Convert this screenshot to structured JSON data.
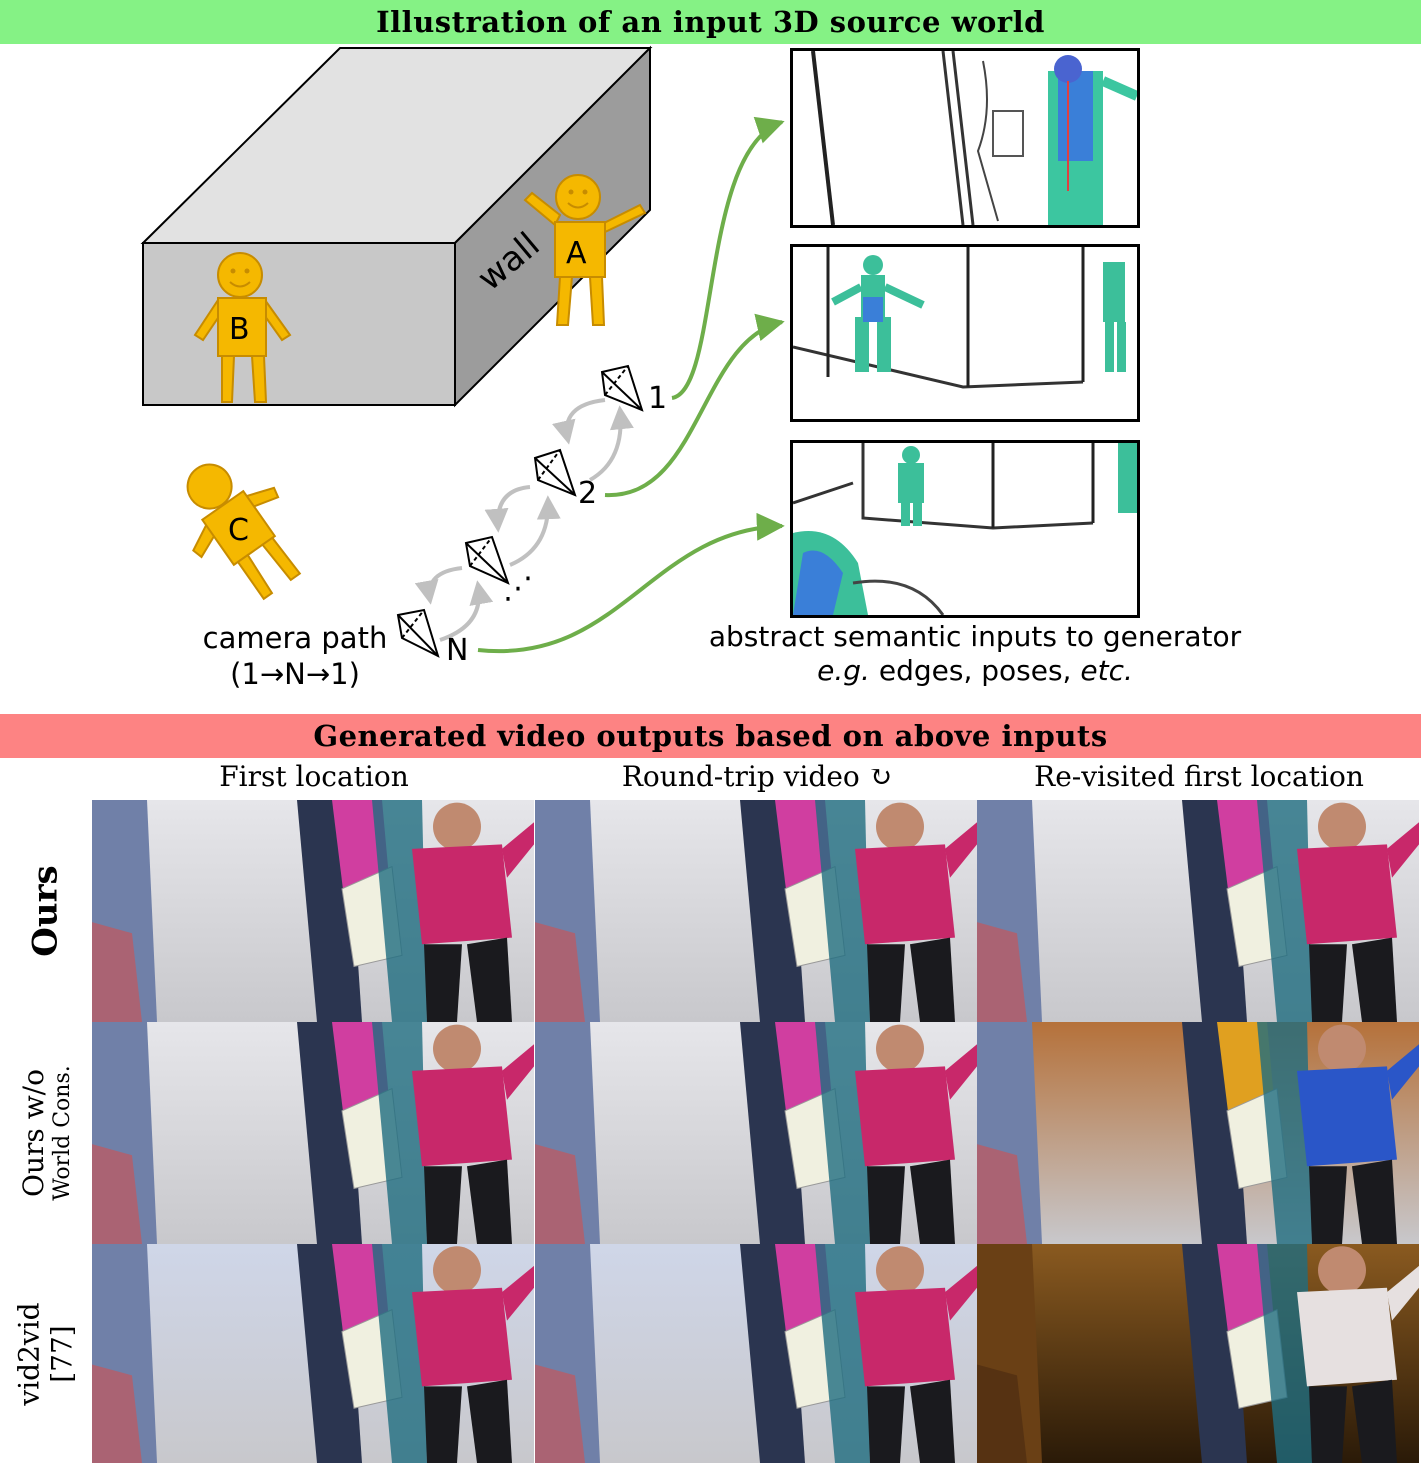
{
  "top_banner": "Illustration of an input 3D source world",
  "bottom_banner": "Generated video outputs based on above inputs",
  "scene": {
    "wall_label": "wall",
    "people": [
      "A",
      "B",
      "C"
    ],
    "camera_numbers": [
      "1",
      "2",
      "N"
    ],
    "camera_ellipsis": "⋰",
    "camera_path_label": "camera path",
    "camera_path_sub": "(1→N→1)",
    "inputs_caption_line1": "abstract semantic inputs to generator",
    "inputs_caption_eg": "e.g.",
    "inputs_caption_mid": " edges, poses, ",
    "inputs_caption_etc": "etc."
  },
  "columns": [
    "First location",
    "Round-trip video ↻",
    "Re-visited first location"
  ],
  "rows": [
    {
      "label": "Ours",
      "sublabel": ""
    },
    {
      "label": "Ours w/o",
      "sublabel": "World Cons."
    },
    {
      "label": "vid2vid",
      "sublabel": "[77]"
    }
  ],
  "colors": {
    "top_banner": "#85f285",
    "bottom_banner": "#fd8383",
    "person": "#f5b800",
    "arrow": "#6eae4a",
    "camera_path": "#c0c0c0"
  }
}
